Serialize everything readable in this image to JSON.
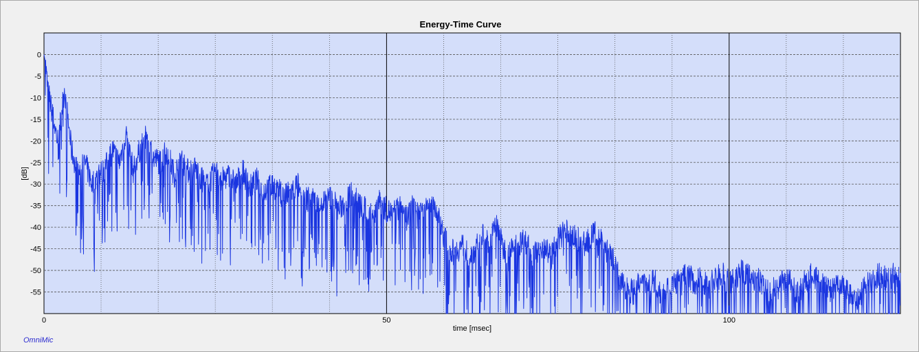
{
  "app": {
    "brand": "OmniMic"
  },
  "colors": {
    "plot_bg": "#d4defa",
    "trace": "#1a35e0",
    "grid_major": "#000000",
    "grid_minor": "#555555"
  },
  "chart_data": {
    "type": "line",
    "title": "Energy-Time Curve",
    "xlabel": "time [msec]",
    "ylabel": "[dB]",
    "xlim": [
      0,
      125
    ],
    "ylim": [
      -60,
      5
    ],
    "x_major_ticks": [
      0,
      50,
      100
    ],
    "x_minor_ticks": [
      8.33,
      16.67,
      25,
      33.33,
      41.67,
      58.33,
      66.67,
      75,
      83.33,
      91.67,
      108.33,
      116.67
    ],
    "y_ticks": [
      0,
      -5,
      -10,
      -15,
      -20,
      -25,
      -30,
      -35,
      -40,
      -45,
      -50,
      -55
    ],
    "grid": true,
    "series": [
      {
        "x": [
          0,
          0.2,
          0.5,
          1,
          2,
          3,
          4,
          5,
          6,
          7,
          8,
          9,
          10,
          11,
          12,
          13,
          14,
          15,
          16,
          17,
          18,
          19,
          20,
          21,
          22,
          23,
          24,
          25,
          26,
          27,
          28,
          29,
          30,
          31,
          32,
          33,
          34,
          35,
          36,
          37,
          38,
          39,
          40,
          41,
          42,
          43,
          44,
          45,
          46,
          47,
          48,
          49,
          50,
          51,
          52,
          53,
          54,
          55,
          56,
          57,
          58,
          59,
          60,
          61,
          62,
          63,
          64,
          65,
          66,
          67,
          68,
          69,
          70,
          71,
          72,
          73,
          74,
          75,
          76,
          77,
          78,
          79,
          80,
          81,
          82,
          83,
          84,
          85,
          86,
          87,
          88,
          89,
          90,
          91,
          92,
          93,
          94,
          95,
          96,
          97,
          98,
          99,
          100,
          101,
          102,
          103,
          104,
          105,
          106,
          107,
          108,
          109,
          110,
          111,
          112,
          113,
          114,
          115,
          116,
          117,
          118,
          119,
          120,
          121,
          122,
          123,
          124,
          125
        ],
        "values": [
          0,
          -2,
          -7,
          -12,
          -20,
          -8,
          -22,
          -28,
          -25,
          -30,
          -28,
          -26,
          -22,
          -25,
          -18,
          -27,
          -22,
          -19,
          -24,
          -25,
          -22,
          -28,
          -24,
          -27,
          -26,
          -29,
          -30,
          -27,
          -29,
          -28,
          -30,
          -27,
          -31,
          -29,
          -32,
          -30,
          -31,
          -33,
          -32,
          -30,
          -34,
          -33,
          -35,
          -34,
          -33,
          -36,
          -34,
          -32,
          -35,
          -36,
          -37,
          -34,
          -36,
          -37,
          -35,
          -38,
          -34,
          -36,
          -33,
          -35,
          -40,
          -45,
          -46,
          -44,
          -47,
          -45,
          -42,
          -44,
          -39,
          -45,
          -46,
          -44,
          -43,
          -45,
          -46,
          -44,
          -47,
          -43,
          -41,
          -42,
          -43,
          -44,
          -42,
          -41,
          -45,
          -47,
          -52,
          -54,
          -55,
          -53,
          -54,
          -52,
          -55,
          -54,
          -53,
          -52,
          -51,
          -53,
          -52,
          -54,
          -52,
          -51,
          -53,
          -52,
          -50,
          -51,
          -52,
          -53,
          -55,
          -54,
          -52,
          -53,
          -55,
          -53,
          -51,
          -52,
          -54,
          -55,
          -53,
          -54,
          -56,
          -57,
          -53,
          -52,
          -51,
          -52,
          -51,
          -52
        ]
      }
    ]
  }
}
